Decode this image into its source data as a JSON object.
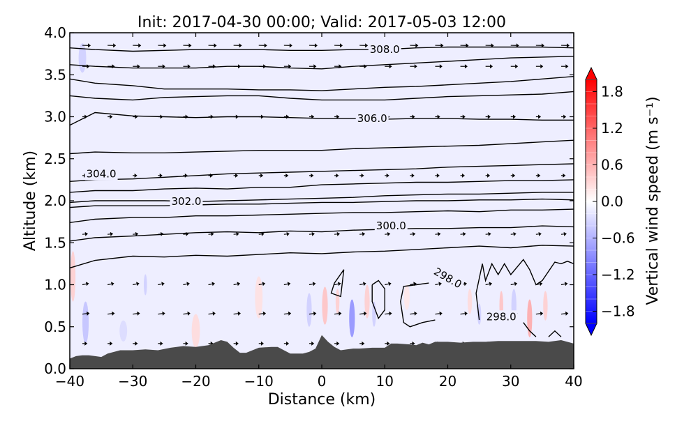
{
  "chart_data": {
    "type": "heatmap",
    "title": "Init: 2017-04-30 00:00; Valid: 2017-05-03 12:00",
    "xlabel": "Distance (km)",
    "ylabel": "Altitude (km)",
    "xlim": [
      -40,
      40
    ],
    "ylim": [
      0,
      4
    ],
    "x_ticks": [
      -40,
      -30,
      -20,
      -10,
      0,
      10,
      20,
      30,
      40
    ],
    "x_tick_labels": [
      "−40",
      "−30",
      "−20",
      "−10",
      "0",
      "10",
      "20",
      "30",
      "40"
    ],
    "y_ticks": [
      0,
      0.5,
      1,
      1.5,
      2,
      2.5,
      3,
      3.5,
      4
    ],
    "y_tick_labels": [
      "0.0",
      "0.5",
      "1.0",
      "1.5",
      "2.0",
      "2.5",
      "3.0",
      "3.5",
      "4.0"
    ],
    "colorbar": {
      "label": "Vertical wind speed (m s⁻¹)",
      "range": [
        -2,
        2
      ],
      "ticks": [
        -1.8,
        -1.2,
        -0.6,
        0,
        0.6,
        1.2,
        1.8
      ],
      "tick_labels": [
        "−1.8",
        "−1.2",
        "−0.6",
        "0.0",
        "0.6",
        "1.2",
        "1.8"
      ],
      "colormap": "bwr",
      "levels": 20,
      "extend": "both"
    },
    "terrain": {
      "color": "#4a4a4a",
      "x": [
        -40,
        -39,
        -38,
        -37,
        -36,
        -35,
        -34,
        -32,
        -30,
        -28,
        -26,
        -24,
        -22,
        -20,
        -18,
        -17,
        -16,
        -15,
        -14,
        -13,
        -12,
        -10,
        -8,
        -7,
        -6,
        -5,
        -4,
        -3,
        -2,
        -1,
        0,
        1,
        2,
        3,
        4,
        5,
        6,
        8,
        10,
        11,
        12,
        14,
        15,
        16,
        17,
        18,
        20,
        22,
        24,
        26,
        28,
        30,
        32,
        34,
        36,
        38,
        40
      ],
      "y": [
        0.12,
        0.15,
        0.16,
        0.16,
        0.15,
        0.14,
        0.18,
        0.22,
        0.22,
        0.23,
        0.22,
        0.25,
        0.27,
        0.26,
        0.28,
        0.31,
        0.34,
        0.32,
        0.25,
        0.19,
        0.19,
        0.25,
        0.26,
        0.26,
        0.22,
        0.18,
        0.18,
        0.18,
        0.2,
        0.24,
        0.4,
        0.32,
        0.26,
        0.22,
        0.23,
        0.24,
        0.24,
        0.25,
        0.25,
        0.3,
        0.3,
        0.29,
        0.28,
        0.31,
        0.29,
        0.32,
        0.32,
        0.31,
        0.32,
        0.32,
        0.33,
        0.33,
        0.33,
        0.33,
        0.32,
        0.34,
        0.3
      ]
    },
    "theta_contours": [
      {
        "x": [
          -40,
          -36,
          -30,
          -25,
          -20,
          -15,
          -10,
          -5,
          0,
          5,
          10,
          15,
          20,
          25,
          30,
          35,
          40
        ],
        "y": [
          1.2,
          1.29,
          1.34,
          1.33,
          1.35,
          1.34,
          1.36,
          1.38,
          1.37,
          1.39,
          1.4,
          1.42,
          1.44,
          1.46,
          1.44,
          1.47,
          1.46
        ]
      },
      {
        "x": [
          -40,
          -36,
          -30,
          -25,
          -20,
          -15,
          -10,
          -5,
          0,
          5,
          10,
          15,
          20,
          25,
          30,
          35,
          40
        ],
        "y": [
          1.52,
          1.56,
          1.58,
          1.6,
          1.62,
          1.63,
          1.62,
          1.64,
          1.63,
          1.65,
          1.66,
          1.67,
          1.67,
          1.68,
          1.68,
          1.7,
          1.69
        ],
        "label": "300.0",
        "label_x": 11,
        "label_y": 1.7
      },
      {
        "x": [
          -40,
          -36,
          -30,
          -25,
          -20,
          -15,
          -10,
          -5,
          0,
          5,
          10,
          15,
          20,
          25,
          30,
          35,
          40
        ],
        "y": [
          1.74,
          1.78,
          1.8,
          1.8,
          1.82,
          1.82,
          1.83,
          1.84,
          1.85,
          1.86,
          1.86,
          1.87,
          1.88,
          1.87,
          1.89,
          1.89,
          1.9
        ]
      },
      {
        "x": [
          -40,
          -36,
          -30,
          -25,
          -20,
          -15,
          -10,
          -5,
          0,
          5,
          10,
          15,
          20,
          25,
          30,
          35,
          40
        ],
        "y": [
          1.92,
          1.94,
          1.94,
          1.94,
          1.95,
          1.96,
          1.96,
          1.97,
          1.98,
          1.98,
          1.99,
          2.0,
          2.0,
          2.01,
          2.01,
          2.02,
          2.01
        ]
      },
      {
        "x": [
          -40,
          -36,
          -30,
          -25,
          -20,
          -15,
          -10,
          -5,
          0,
          5,
          10,
          15,
          20,
          25,
          30,
          35,
          40
        ],
        "y": [
          1.98,
          2.0,
          2.0,
          2.0,
          1.99,
          2.0,
          2.01,
          2.02,
          2.03,
          2.04,
          2.06,
          2.07,
          2.08,
          2.08,
          2.09,
          2.1,
          2.1
        ],
        "label": "302.0",
        "label_x": -21.5,
        "label_y": 1.99
      },
      {
        "x": [
          -40,
          -36,
          -30,
          -25,
          -20,
          -15,
          -10,
          -5,
          0,
          5,
          10,
          15,
          20,
          25,
          30,
          35,
          40
        ],
        "y": [
          2.1,
          2.12,
          2.12,
          2.14,
          2.15,
          2.14,
          2.16,
          2.16,
          2.19,
          2.2,
          2.21,
          2.22,
          2.22,
          2.23,
          2.24,
          2.24,
          2.25
        ]
      },
      {
        "x": [
          -40,
          -36,
          -30,
          -25,
          -20,
          -15,
          -10,
          -5,
          0,
          5,
          10,
          15,
          20,
          25,
          30,
          35,
          40
        ],
        "y": [
          2.23,
          2.25,
          2.26,
          2.28,
          2.3,
          2.32,
          2.33,
          2.34,
          2.35,
          2.36,
          2.37,
          2.38,
          2.4,
          2.41,
          2.42,
          2.43,
          2.44
        ],
        "label": "304.0",
        "label_x": -35,
        "label_y": 2.32
      },
      {
        "x": [
          -40,
          -36,
          -30,
          -25,
          -20,
          -15,
          -10,
          -5,
          0,
          5,
          10,
          15,
          20,
          25,
          30,
          35,
          40
        ],
        "y": [
          2.56,
          2.58,
          2.57,
          2.57,
          2.58,
          2.59,
          2.6,
          2.6,
          2.6,
          2.62,
          2.63,
          2.64,
          2.65,
          2.66,
          2.68,
          2.7,
          2.72
        ]
      },
      {
        "x": [
          -40,
          -36,
          -30,
          -25,
          -20,
          -15,
          -10,
          -5,
          0,
          5,
          10,
          15,
          20,
          25,
          30,
          35,
          40
        ],
        "y": [
          2.9,
          3.05,
          3.01,
          3.0,
          2.99,
          3.0,
          3.0,
          2.99,
          2.98,
          2.98,
          2.97,
          2.98,
          2.98,
          2.97,
          2.97,
          2.96,
          2.96
        ],
        "label": "306.0",
        "label_x": 8,
        "label_y": 2.98
      },
      {
        "x": [
          -40,
          -36,
          -30,
          -25,
          -20,
          -15,
          -10,
          -5,
          0,
          5,
          10,
          15,
          20,
          25,
          30,
          35,
          40
        ],
        "y": [
          3.25,
          3.22,
          3.2,
          3.23,
          3.24,
          3.25,
          3.25,
          3.22,
          3.2,
          3.2,
          3.2,
          3.22,
          3.24,
          3.25,
          3.26,
          3.27,
          3.3
        ]
      },
      {
        "x": [
          -40,
          -36,
          -30,
          -25,
          -20,
          -15,
          -10,
          -5,
          0,
          5,
          10,
          15,
          20,
          25,
          30,
          35,
          40
        ],
        "y": [
          3.45,
          3.4,
          3.37,
          3.33,
          3.33,
          3.33,
          3.32,
          3.32,
          3.31,
          3.33,
          3.35,
          3.36,
          3.38,
          3.4,
          3.42,
          3.45,
          3.48
        ]
      },
      {
        "x": [
          -40,
          -36,
          -30,
          -25,
          -20,
          -15,
          -10,
          -5,
          0,
          5,
          10,
          15,
          20,
          25,
          30,
          35,
          40
        ],
        "y": [
          3.62,
          3.6,
          3.58,
          3.58,
          3.58,
          3.6,
          3.6,
          3.58,
          3.57,
          3.6,
          3.62,
          3.64,
          3.66,
          3.68,
          3.7,
          3.71,
          3.72
        ]
      },
      {
        "x": [
          -40,
          -36,
          -30,
          -25,
          -20,
          -15,
          -10,
          -5,
          0,
          5,
          10,
          15,
          20,
          25,
          30,
          35,
          40
        ],
        "y": [
          3.82,
          3.8,
          3.78,
          3.79,
          3.8,
          3.8,
          3.8,
          3.79,
          3.79,
          3.8,
          3.8,
          3.82,
          3.83,
          3.83,
          3.83,
          3.83,
          3.82
        ],
        "label": "308.0",
        "label_x": 10,
        "label_y": 3.8
      },
      {
        "x": [
          2,
          3.5,
          3,
          1.5,
          2
        ],
        "y": [
          1.02,
          1.18,
          0.86,
          0.9,
          1.02
        ]
      },
      {
        "x": [
          8,
          9,
          10,
          10,
          9,
          8,
          8
        ],
        "y": [
          1.0,
          1.05,
          0.95,
          0.7,
          0.6,
          0.8,
          1.0
        ]
      },
      {
        "x": [
          17,
          15,
          13,
          12.5,
          13,
          14,
          16,
          18
        ],
        "y": [
          1.02,
          1.0,
          0.98,
          0.8,
          0.55,
          0.5,
          0.55,
          0.58
        ]
      },
      {
        "x": [
          25,
          24.5,
          25.5,
          26,
          27,
          28,
          29,
          30,
          32,
          33,
          34,
          35,
          37,
          38,
          39,
          40
        ],
        "y": [
          0.58,
          0.9,
          1.25,
          1.05,
          1.25,
          1.12,
          1.25,
          1.12,
          1.3,
          1.18,
          1.0,
          1.05,
          1.27,
          1.25,
          1.28,
          1.25
        ]
      },
      {
        "x": [
          32,
          33,
          34
        ],
        "y": [
          0.55,
          0.45,
          0.38
        ]
      },
      {
        "x": [
          36,
          37,
          38
        ],
        "y": [
          0.38,
          0.45,
          0.38
        ]
      }
    ],
    "contour_labels_extra": [
      {
        "text": "298.0",
        "x": 20,
        "y": 1.08,
        "angle": 30
      },
      {
        "text": "298.0",
        "x": 28.5,
        "y": 0.62,
        "angle": 0
      }
    ],
    "vertical_wind_cells": [
      {
        "x": -38,
        "y": 3.7,
        "w": 1.2,
        "h": 0.35,
        "v": -0.4
      },
      {
        "x": -39.5,
        "y": 1.1,
        "w": 0.8,
        "h": 0.6,
        "v": 0.4
      },
      {
        "x": -37.5,
        "y": 0.55,
        "w": 1.0,
        "h": 0.5,
        "v": -0.5
      },
      {
        "x": -31.5,
        "y": 0.45,
        "w": 1.2,
        "h": 0.25,
        "v": -0.3
      },
      {
        "x": -28,
        "y": 1.0,
        "w": 0.5,
        "h": 0.25,
        "v": -0.4
      },
      {
        "x": -20,
        "y": 0.45,
        "w": 1.3,
        "h": 0.4,
        "v": 0.3
      },
      {
        "x": -10,
        "y": 0.85,
        "w": 1.2,
        "h": 0.5,
        "v": 0.25
      },
      {
        "x": -2,
        "y": 0.7,
        "w": 0.8,
        "h": 0.4,
        "v": -0.4
      },
      {
        "x": 0.5,
        "y": 0.75,
        "w": 0.9,
        "h": 0.45,
        "v": 0.5
      },
      {
        "x": 2.5,
        "y": 0.8,
        "w": 0.6,
        "h": 0.3,
        "v": 0.4
      },
      {
        "x": 4.8,
        "y": 0.6,
        "w": 0.9,
        "h": 0.45,
        "v": -0.9
      },
      {
        "x": 7.2,
        "y": 0.8,
        "w": 0.8,
        "h": 0.4,
        "v": 0.4
      },
      {
        "x": 8.3,
        "y": 0.65,
        "w": 0.6,
        "h": 0.3,
        "v": -0.4
      },
      {
        "x": 13.5,
        "y": 0.85,
        "w": 0.9,
        "h": 0.3,
        "v": 0.2
      },
      {
        "x": 23.5,
        "y": 0.8,
        "w": 0.7,
        "h": 0.3,
        "v": 0.3
      },
      {
        "x": 25,
        "y": 0.65,
        "w": 0.6,
        "h": 0.25,
        "v": -0.4
      },
      {
        "x": 28.5,
        "y": 0.75,
        "w": 0.6,
        "h": 0.35,
        "v": 0.5
      },
      {
        "x": 30.5,
        "y": 0.75,
        "w": 0.8,
        "h": 0.4,
        "v": -0.4
      },
      {
        "x": 33,
        "y": 0.6,
        "w": 0.8,
        "h": 0.45,
        "v": 0.7
      },
      {
        "x": 35.5,
        "y": 0.75,
        "w": 0.7,
        "h": 0.35,
        "v": 0.4
      }
    ],
    "wind_vectors": {
      "color": "#000000",
      "x": [
        -38,
        -34,
        -30,
        -26,
        -22,
        -18,
        -14,
        -10,
        -6,
        -2,
        2,
        6,
        10,
        14,
        18,
        22,
        26,
        30,
        34,
        38
      ],
      "y": [
        0.3,
        0.65,
        1.0,
        1.6,
        2.3,
        3.0,
        3.6,
        3.85
      ],
      "u_by_row": [
        0.4,
        0.8,
        0.7,
        0.5,
        0.3,
        0.4,
        0.8,
        1.0
      ],
      "w_by_row": [
        0.0,
        0.1,
        0.15,
        0.05,
        0.0,
        0.0,
        0.0,
        -0.02
      ]
    }
  }
}
